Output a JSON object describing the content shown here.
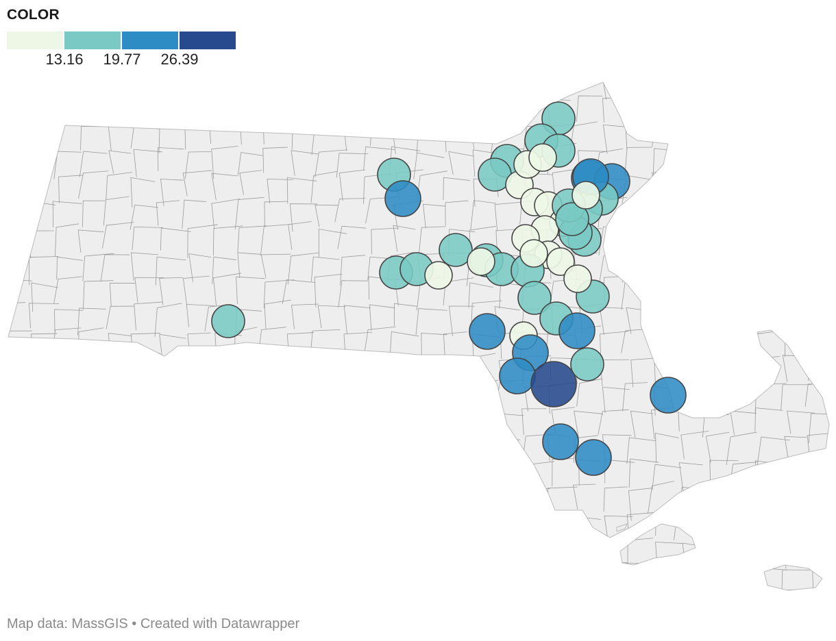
{
  "legend": {
    "title": "COLOR",
    "colors": [
      "#eef7e6",
      "#7ac9c4",
      "#2d8cc4",
      "#27498d"
    ],
    "ticks": [
      "13.16",
      "19.77",
      "26.39"
    ]
  },
  "footer": {
    "text": "Map data: MassGIS • Created with Datawrapper"
  },
  "map": {
    "base_fill": "#eeeeee",
    "border_color": "#666666",
    "points": [
      {
        "class": 1
      },
      {
        "class": 1
      },
      {
        "class": 1
      },
      {
        "class": 1
      },
      {
        "class": 1
      },
      {
        "class": 1
      },
      {
        "class": 1
      },
      {
        "class": 2
      },
      {
        "class": 1
      },
      {
        "class": 0
      },
      {
        "class": 0
      },
      {
        "class": 0
      },
      {
        "class": 2
      },
      {
        "class": 2
      },
      {
        "class": 1
      },
      {
        "class": 1
      },
      {
        "class": 0
      },
      {
        "class": 0
      },
      {
        "class": 0
      },
      {
        "class": 0
      },
      {
        "class": 0
      },
      {
        "class": 0
      },
      {
        "class": 1
      },
      {
        "class": 1
      },
      {
        "class": 1
      },
      {
        "class": 2
      },
      {
        "class": 1
      },
      {
        "class": 1
      },
      {
        "class": 0
      },
      {
        "class": 1
      },
      {
        "class": 1
      },
      {
        "class": 0
      },
      {
        "class": 1
      },
      {
        "class": 0
      },
      {
        "class": 0
      },
      {
        "class": 1
      },
      {
        "class": 0
      },
      {
        "class": 1
      },
      {
        "class": 0
      },
      {
        "class": 1
      },
      {
        "class": 2
      },
      {
        "class": 0
      },
      {
        "class": 2
      },
      {
        "class": 2
      },
      {
        "class": 1
      },
      {
        "class": 2
      },
      {
        "class": 3
      },
      {
        "class": 2
      },
      {
        "class": 2
      },
      {
        "class": 2
      },
      {
        "class": 1
      }
    ]
  }
}
